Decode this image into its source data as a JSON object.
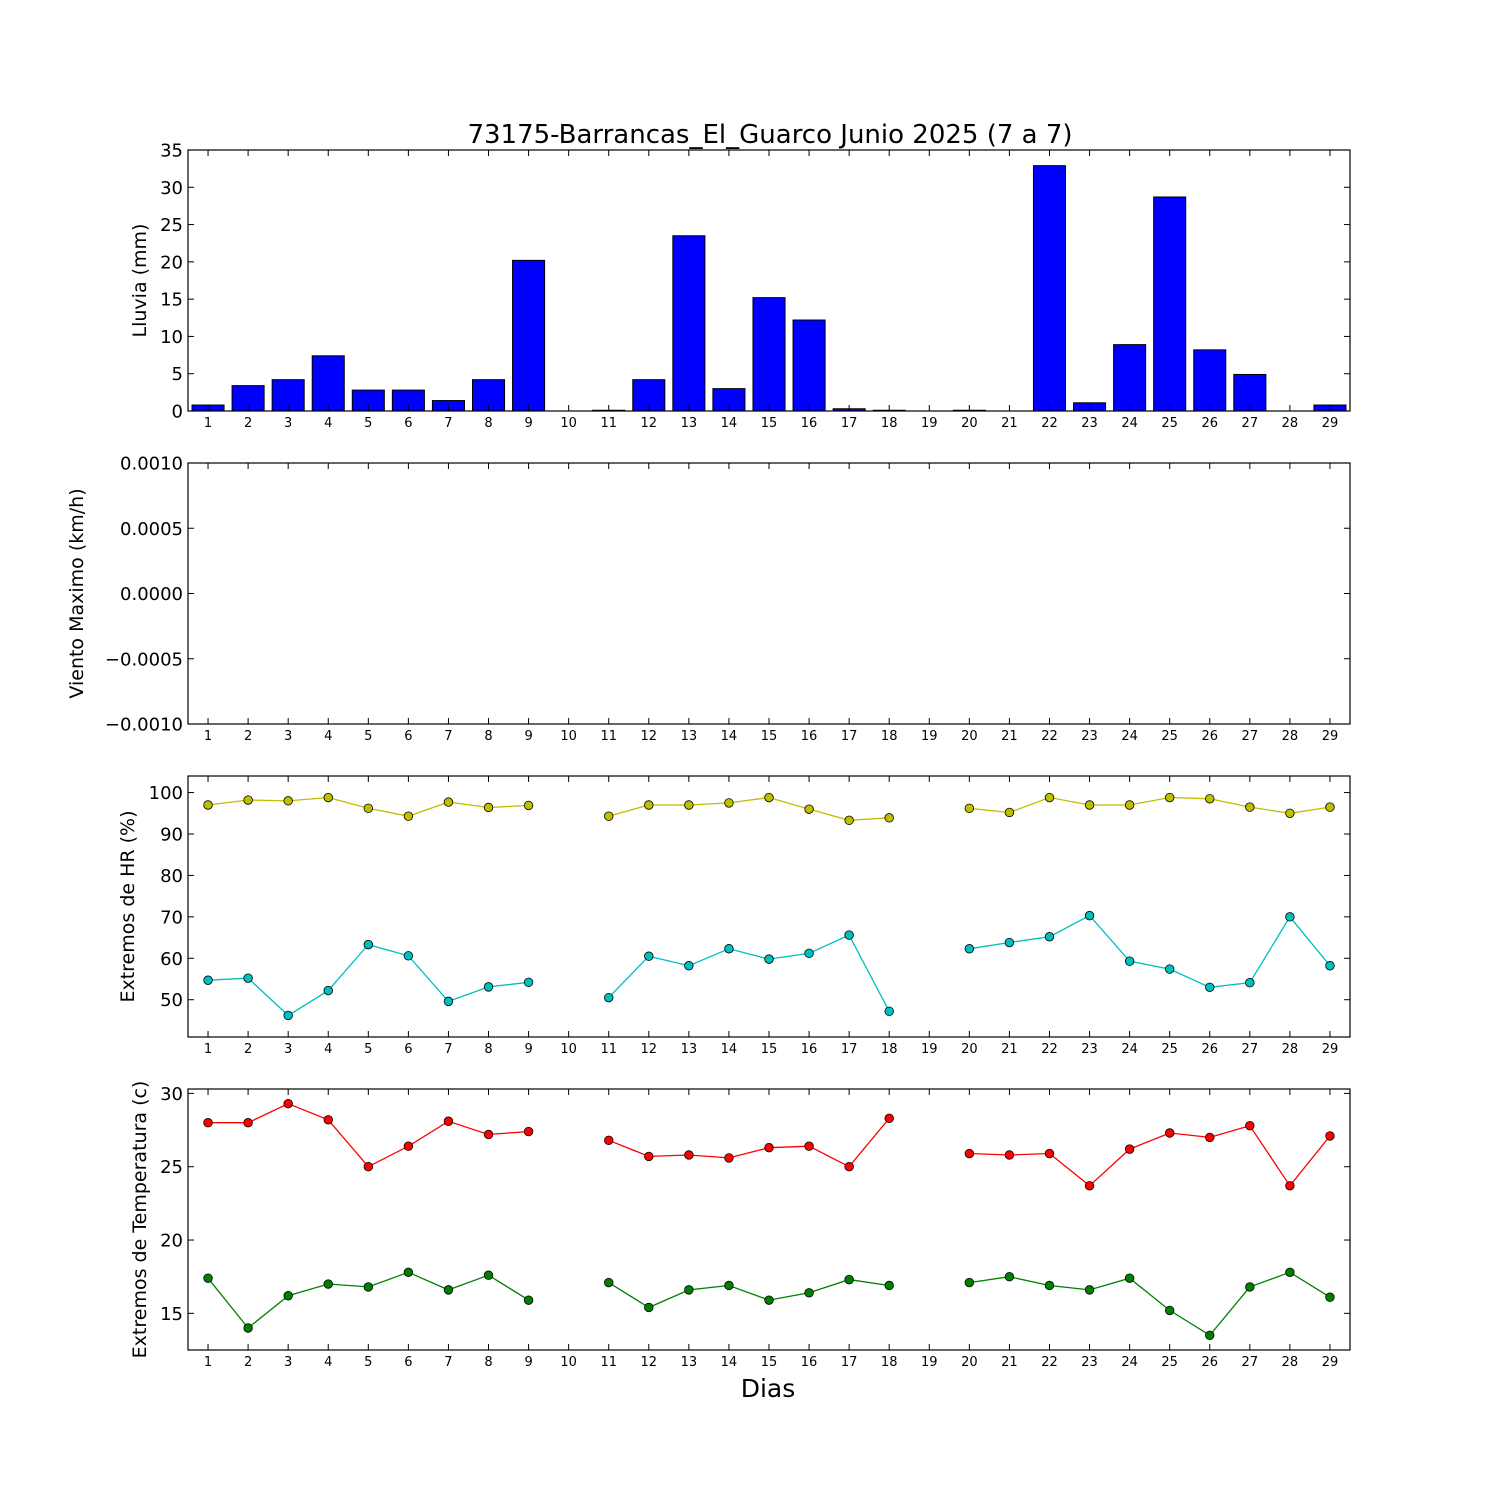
{
  "title": "73175-Barrancas_El_Guarco Junio 2025  (7 a 7)",
  "xlabel": "Dias",
  "colors": {
    "bar_fill": "#0000ff",
    "hr_max": "#bfbf00",
    "hr_min": "#00bfbf",
    "temp_max": "#ff0000",
    "temp_min": "#008000"
  },
  "chart_data": [
    {
      "type": "bar",
      "name": "lluvia",
      "ylabel": "Lluvia (mm)",
      "ylim": [
        0,
        35
      ],
      "yticks": [
        0,
        5,
        10,
        15,
        20,
        25,
        30,
        35
      ],
      "ytick_labels": [
        "0",
        "5",
        "10",
        "15",
        "20",
        "25",
        "30",
        "35"
      ],
      "categories": [
        "1",
        "2",
        "3",
        "4",
        "5",
        "6",
        "7",
        "8",
        "9",
        "10",
        "11",
        "12",
        "13",
        "14",
        "15",
        "16",
        "17",
        "18",
        "19",
        "20",
        "21",
        "22",
        "23",
        "24",
        "25",
        "26",
        "27",
        "28",
        "29"
      ],
      "values": [
        0.8,
        3.4,
        4.2,
        7.4,
        2.8,
        2.8,
        1.4,
        4.2,
        20.2,
        0,
        0.1,
        4.2,
        23.5,
        3.0,
        15.2,
        12.2,
        0.3,
        0.1,
        0,
        0.1,
        0,
        32.9,
        1.1,
        8.9,
        28.7,
        8.2,
        4.9,
        0,
        0.8
      ],
      "grid": false
    },
    {
      "type": "line",
      "name": "viento",
      "ylabel": "Viento Maximo (km/h)",
      "ylim": [
        -0.001,
        0.001
      ],
      "yticks": [
        -0.001,
        -0.0005,
        0,
        0.0005,
        0.001
      ],
      "ytick_labels": [
        "−0.0010",
        "−0.0005",
        "0.0000",
        "0.0005",
        "0.0010"
      ],
      "categories": [
        "1",
        "2",
        "3",
        "4",
        "5",
        "6",
        "7",
        "8",
        "9",
        "10",
        "11",
        "12",
        "13",
        "14",
        "15",
        "16",
        "17",
        "18",
        "19",
        "20",
        "21",
        "22",
        "23",
        "24",
        "25",
        "26",
        "27",
        "28",
        "29"
      ],
      "series": [],
      "grid": false
    },
    {
      "type": "line",
      "name": "hr",
      "ylabel": "Extremos de HR (%)",
      "ylim": [
        41,
        104
      ],
      "yticks": [
        50,
        60,
        70,
        80,
        90,
        100
      ],
      "ytick_labels": [
        "50",
        "60",
        "70",
        "80",
        "90",
        "100"
      ],
      "categories": [
        "1",
        "2",
        "3",
        "4",
        "5",
        "6",
        "7",
        "8",
        "9",
        "10",
        "11",
        "12",
        "13",
        "14",
        "15",
        "16",
        "17",
        "18",
        "19",
        "20",
        "21",
        "22",
        "23",
        "24",
        "25",
        "26",
        "27",
        "28",
        "29"
      ],
      "series": [
        {
          "values": [
            97,
            98.2,
            98,
            98.8,
            96.2,
            94.3,
            97.7,
            96.4,
            96.9,
            null,
            94.3,
            97,
            97,
            97.5,
            98.8,
            96,
            93.3,
            93.9,
            null,
            96.2,
            95.2,
            98.8,
            97,
            97,
            98.8,
            98.5,
            96.5,
            95,
            96.5
          ],
          "color_key": "hr_max"
        },
        {
          "values": [
            54.7,
            55.2,
            46.2,
            52.2,
            63.3,
            60.6,
            49.6,
            53.1,
            54.2,
            null,
            50.5,
            60.5,
            58.2,
            62.3,
            59.8,
            61.2,
            65.6,
            47.2,
            null,
            62.3,
            63.8,
            65.2,
            70.3,
            59.3,
            57.4,
            53,
            54.1,
            70,
            58.2
          ],
          "color_key": "hr_min"
        }
      ],
      "grid": false
    },
    {
      "type": "line",
      "name": "temperatura",
      "ylabel": "Extremos de Temperatura (c)",
      "ylim": [
        12.5,
        30.3
      ],
      "yticks": [
        15,
        20,
        25,
        30
      ],
      "ytick_labels": [
        "15",
        "20",
        "25",
        "30"
      ],
      "categories": [
        "1",
        "2",
        "3",
        "4",
        "5",
        "6",
        "7",
        "8",
        "9",
        "10",
        "11",
        "12",
        "13",
        "14",
        "15",
        "16",
        "17",
        "18",
        "19",
        "20",
        "21",
        "22",
        "23",
        "24",
        "25",
        "26",
        "27",
        "28",
        "29"
      ],
      "series": [
        {
          "values": [
            28,
            28,
            29.3,
            28.2,
            25,
            26.4,
            28.1,
            27.2,
            27.4,
            null,
            26.8,
            25.7,
            25.8,
            25.6,
            26.3,
            26.4,
            25,
            28.3,
            null,
            25.9,
            25.8,
            25.9,
            23.7,
            26.2,
            27.3,
            27,
            27.8,
            23.7,
            27.1
          ],
          "color_key": "temp_max"
        },
        {
          "values": [
            17.4,
            14,
            16.2,
            17,
            16.8,
            17.8,
            16.6,
            17.6,
            15.9,
            null,
            17.1,
            15.4,
            16.6,
            16.9,
            15.9,
            16.4,
            17.3,
            16.9,
            null,
            17.1,
            17.5,
            16.9,
            16.6,
            17.4,
            15.2,
            13.5,
            16.8,
            17.8,
            16.1
          ],
          "color_key": "temp_min"
        }
      ],
      "grid": false
    }
  ]
}
